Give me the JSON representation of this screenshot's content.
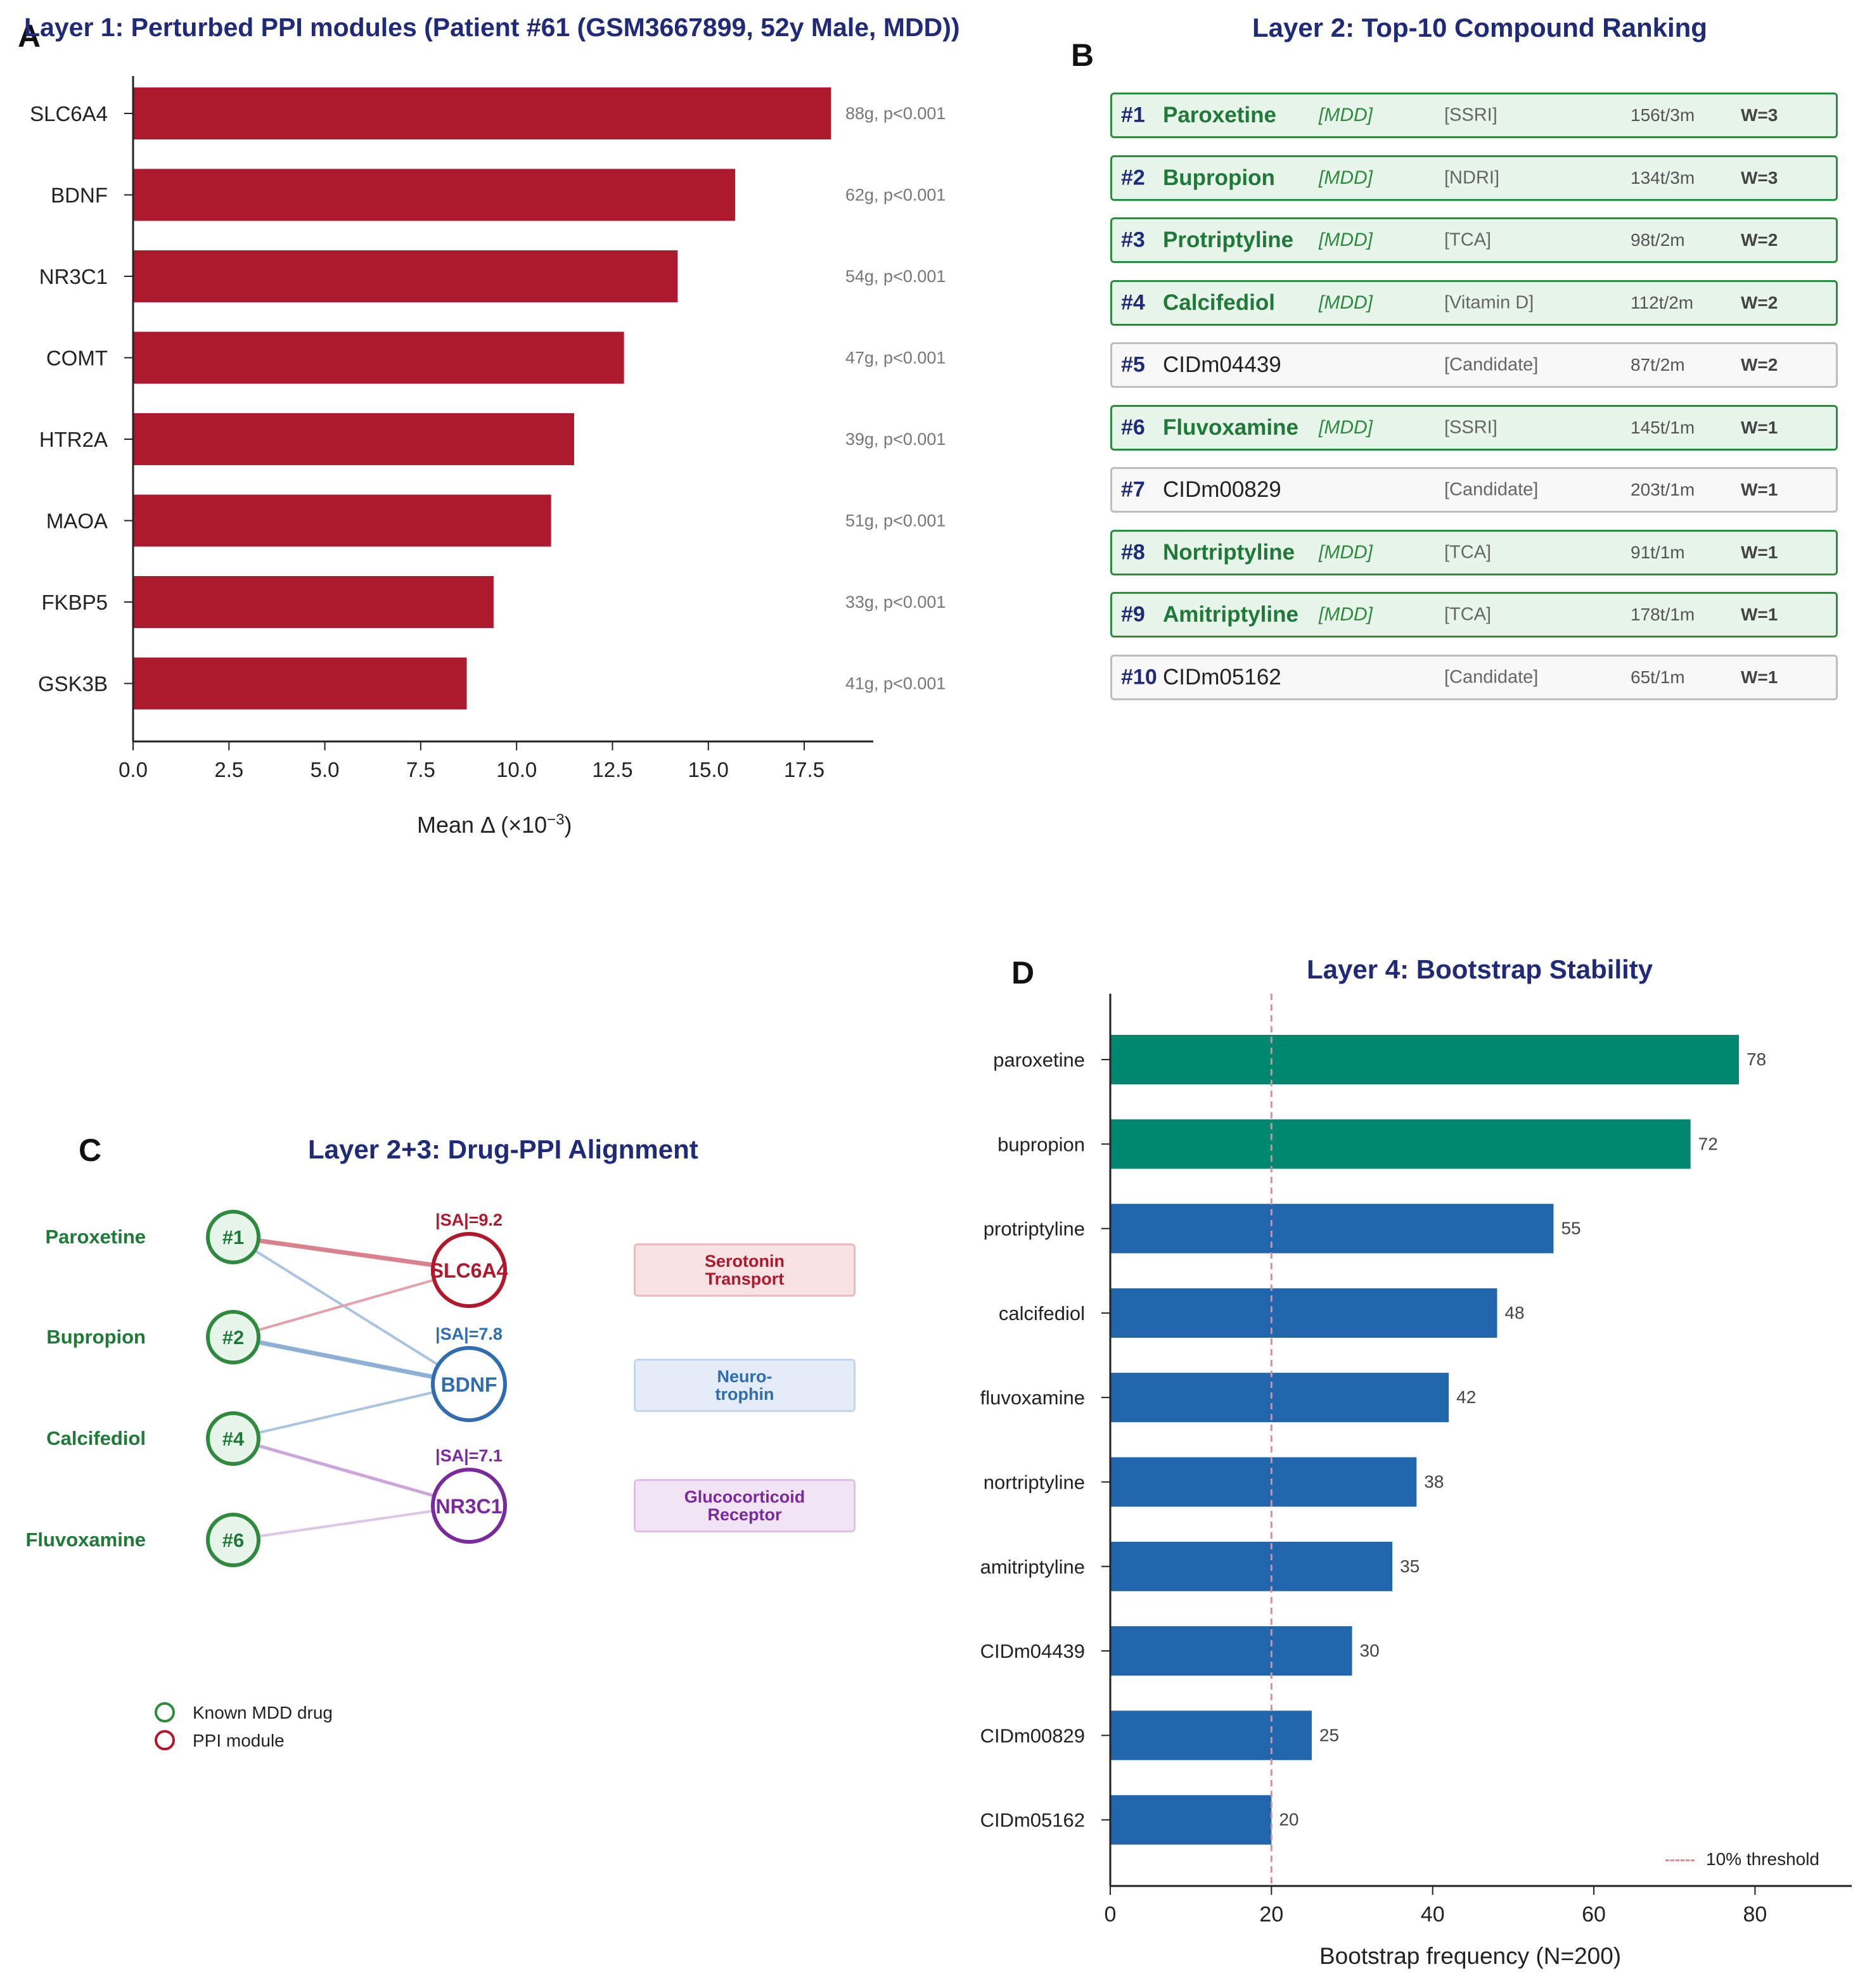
{
  "panelA": {
    "letter": "A",
    "title": "Layer 1: Perturbed PPI modules (Patient #61 (GSM3667899, 52y Male, MDD))",
    "xlabel": "Mean Δ (×10",
    "xlabel_exp": "−3",
    "xlabel_close": ")"
  },
  "panelB": {
    "letter": "B",
    "title": "Layer 2: Top-10 Compound Ranking",
    "rows": [
      {
        "rank": "#1",
        "name": "Paroxetine",
        "indication": "[MDD]",
        "cls": "[SSRI]",
        "stat": "156t/3m",
        "w": "W=3",
        "known": true
      },
      {
        "rank": "#2",
        "name": "Bupropion",
        "indication": "[MDD]",
        "cls": "[NDRI]",
        "stat": "134t/3m",
        "w": "W=3",
        "known": true
      },
      {
        "rank": "#3",
        "name": "Protriptyline",
        "indication": "[MDD]",
        "cls": "[TCA]",
        "stat": "98t/2m",
        "w": "W=2",
        "known": true
      },
      {
        "rank": "#4",
        "name": "Calcifediol",
        "indication": "[MDD]",
        "cls": "[Vitamin D]",
        "stat": "112t/2m",
        "w": "W=2",
        "known": true
      },
      {
        "rank": "#5",
        "name": "CIDm04439",
        "indication": "",
        "cls": "[Candidate]",
        "stat": "87t/2m",
        "w": "W=2",
        "known": false
      },
      {
        "rank": "#6",
        "name": "Fluvoxamine",
        "indication": "[MDD]",
        "cls": "[SSRI]",
        "stat": "145t/1m",
        "w": "W=1",
        "known": true
      },
      {
        "rank": "#7",
        "name": "CIDm00829",
        "indication": "",
        "cls": "[Candidate]",
        "stat": "203t/1m",
        "w": "W=1",
        "known": false
      },
      {
        "rank": "#8",
        "name": "Nortriptyline",
        "indication": "[MDD]",
        "cls": "[TCA]",
        "stat": "91t/1m",
        "w": "W=1",
        "known": true
      },
      {
        "rank": "#9",
        "name": "Amitriptyline",
        "indication": "[MDD]",
        "cls": "[TCA]",
        "stat": "178t/1m",
        "w": "W=1",
        "known": true
      },
      {
        "rank": "#10",
        "name": "CIDm05162",
        "indication": "",
        "cls": "[Candidate]",
        "stat": "65t/1m",
        "w": "W=1",
        "known": false
      }
    ]
  },
  "panelC": {
    "letter": "C",
    "title": "Layer 2+3: Drug-PPI Alignment",
    "drugs": [
      {
        "name": "Paroxetine",
        "rank": "#1"
      },
      {
        "name": "Bupropion",
        "rank": "#2"
      },
      {
        "name": "Calcifediol",
        "rank": "#4"
      },
      {
        "name": "Fluvoxamine",
        "rank": "#6"
      }
    ],
    "modules": [
      {
        "name": "SLC6A4",
        "sa": "|SA|=9.2",
        "color": "#b0182c"
      },
      {
        "name": "BDNF",
        "sa": "|SA|=7.8",
        "color": "#2f6db0"
      },
      {
        "name": "NR3C1",
        "sa": "|SA|=7.1",
        "color": "#7b2a9e"
      }
    ],
    "edges": [
      {
        "drug": 0,
        "module": 0,
        "weight": "strong",
        "color": "#d9828e"
      },
      {
        "drug": 0,
        "module": 1,
        "weight": "weak",
        "color": "#a9c4e2"
      },
      {
        "drug": 1,
        "module": 0,
        "weight": "weak",
        "color": "#e4a1ab"
      },
      {
        "drug": 1,
        "module": 1,
        "weight": "strong",
        "color": "#8fb0d6"
      },
      {
        "drug": 2,
        "module": 1,
        "weight": "weak",
        "color": "#a9c4e2"
      },
      {
        "drug": 2,
        "module": 2,
        "weight": "medium",
        "color": "#cba5dc"
      },
      {
        "drug": 3,
        "module": 2,
        "weight": "weak",
        "color": "#dcc6e8"
      }
    ],
    "pathways": [
      {
        "label": "Serotonin\nTransport",
        "bg": "#f8e1e3",
        "border": "#efb9bf",
        "color": "#b0182c"
      },
      {
        "label": "Neuro-\ntrophin",
        "bg": "#e4edf7",
        "border": "#c6d7ec",
        "color": "#2f6db0"
      },
      {
        "label": "Glucocorticoid\nReceptor",
        "bg": "#f1e4f5",
        "border": "#dcc3e6",
        "color": "#7b2a9e"
      }
    ],
    "legend": {
      "drug": "Known MDD drug",
      "module": "PPI module"
    }
  },
  "panelD": {
    "letter": "D",
    "title": "Layer 4: Bootstrap Stability",
    "xlabel": "Bootstrap frequency (N=200)",
    "threshold_label": "10% threshold"
  },
  "chart_data": [
    {
      "type": "bar",
      "orientation": "horizontal",
      "title": "Layer 1: Perturbed PPI modules (Patient #61 (GSM3667899, 52y Male, MDD))",
      "xlabel": "Mean Δ (×10⁻³)",
      "categories": [
        "SLC6A4",
        "BDNF",
        "NR3C1",
        "COMT",
        "HTR2A",
        "MAOA",
        "FKBP5",
        "GSK3B"
      ],
      "values": [
        18.2,
        15.7,
        14.2,
        12.8,
        11.5,
        10.9,
        9.4,
        8.7
      ],
      "annotations": [
        "88g, p<0.001",
        "62g, p<0.001",
        "54g, p<0.001",
        "47g, p<0.001",
        "39g, p<0.001",
        "51g, p<0.001",
        "33g, p<0.001",
        "41g, p<0.001"
      ],
      "xticks": [
        "0.0",
        "2.5",
        "5.0",
        "7.5",
        "10.0",
        "12.5",
        "15.0",
        "17.5"
      ],
      "xlim": [
        0,
        19.3
      ],
      "color": "#ad1a2e"
    },
    {
      "type": "bar",
      "orientation": "horizontal",
      "title": "Layer 4: Bootstrap Stability",
      "xlabel": "Bootstrap frequency (N=200)",
      "categories": [
        "paroxetine",
        "bupropion",
        "protriptyline",
        "calcifediol",
        "fluvoxamine",
        "nortriptyline",
        "amitriptyline",
        "CIDm04439",
        "CIDm00829",
        "CIDm05162"
      ],
      "values": [
        78,
        72,
        55,
        48,
        42,
        38,
        35,
        30,
        25,
        20
      ],
      "highlight_color": "#00876f",
      "color": "#2166ac",
      "highlight_count": 2,
      "threshold": 20,
      "threshold_label": "10% threshold",
      "xticks": [
        "0",
        "20",
        "40",
        "60",
        "80"
      ],
      "xlim": [
        0,
        92
      ]
    }
  ]
}
